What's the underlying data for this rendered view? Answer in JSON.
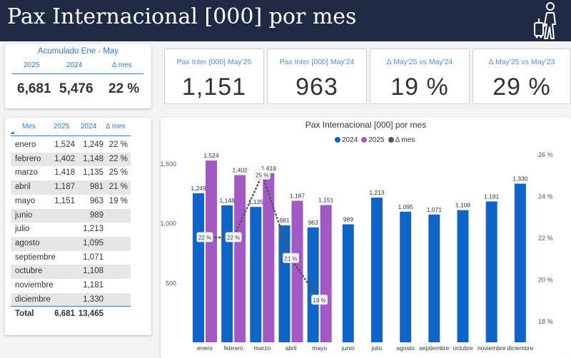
{
  "header": {
    "title": "Pax Internacional [000] por mes",
    "icon": "traveler-icon"
  },
  "cumulative": {
    "title": "Acumulado Ene - May",
    "columns": [
      "2025",
      "2024",
      "Δ mes"
    ],
    "values": [
      "6,681",
      "5,476",
      "22 %"
    ]
  },
  "kpis": [
    {
      "label": "Pax Inter [000] May'25",
      "value": "1,151"
    },
    {
      "label": "Pax Inter [000] May'24",
      "value": "963"
    },
    {
      "label": "Δ May'25 vs May'24",
      "value": "19 %"
    },
    {
      "label": "Δ May'25 vs May'23",
      "value": "29 %"
    }
  ],
  "table": {
    "columns": [
      "Mes",
      "2025",
      "2024",
      "Δ mes"
    ],
    "rows": [
      {
        "month": "enero",
        "y2025": "1,524",
        "y2024": "1,249",
        "delta": "22 %"
      },
      {
        "month": "febrero",
        "y2025": "1,402",
        "y2024": "1,148",
        "delta": "22 %"
      },
      {
        "month": "marzo",
        "y2025": "1,418",
        "y2024": "1,135",
        "delta": "25 %"
      },
      {
        "month": "abril",
        "y2025": "1,187",
        "y2024": "981",
        "delta": "21 %"
      },
      {
        "month": "mayo",
        "y2025": "1,151",
        "y2024": "963",
        "delta": "19 %"
      },
      {
        "month": "junio",
        "y2025": "",
        "y2024": "989",
        "delta": ""
      },
      {
        "month": "julio",
        "y2025": "",
        "y2024": "1,213",
        "delta": ""
      },
      {
        "month": "agosto",
        "y2025": "",
        "y2024": "1,095",
        "delta": ""
      },
      {
        "month": "septiembre",
        "y2025": "",
        "y2024": "1,071",
        "delta": ""
      },
      {
        "month": "octubre",
        "y2025": "",
        "y2024": "1,108",
        "delta": ""
      },
      {
        "month": "noviembre",
        "y2025": "",
        "y2024": "1,181",
        "delta": ""
      },
      {
        "month": "diciembre",
        "y2025": "",
        "y2024": "1,330",
        "delta": ""
      }
    ],
    "total": {
      "label": "Total",
      "y2025": "6,681",
      "y2024": "13,465"
    }
  },
  "chart_data": {
    "type": "bar",
    "title": "Pax Internacional [000] por mes",
    "categories": [
      "enero",
      "febrero",
      "marzo",
      "abril",
      "mayo",
      "junio",
      "julio",
      "agosto",
      "septiembre",
      "octubre",
      "noviembre",
      "diciembre"
    ],
    "series": [
      {
        "name": "2024",
        "color": "#0f64c8",
        "values": [
          1249,
          1148,
          1135,
          981,
          963,
          989,
          1213,
          1095,
          1071,
          1108,
          1181,
          1330
        ]
      },
      {
        "name": "2025",
        "color": "#a259c4",
        "values": [
          1524,
          1402,
          1418,
          1187,
          1151,
          null,
          null,
          null,
          null,
          null,
          null,
          null
        ]
      }
    ],
    "line_series": {
      "name": "Δ mes",
      "color": "#555555",
      "values": [
        22,
        22,
        25,
        21,
        19
      ],
      "labels": [
        "22 %",
        "22 %",
        "25 %",
        "21 %",
        "19 %"
      ]
    },
    "y_left": {
      "ticks": [
        500,
        1000,
        1500
      ],
      "tick_labels": [
        "500",
        "1,000",
        "1,500"
      ],
      "range": [
        0,
        1650
      ]
    },
    "y_right": {
      "ticks": [
        18,
        20,
        22,
        24,
        26
      ],
      "tick_labels": [
        "18 %",
        "20 %",
        "22 %",
        "24 %",
        "26 %"
      ],
      "range": [
        18,
        26
      ]
    },
    "legend_position": "top-center",
    "grid": false
  }
}
